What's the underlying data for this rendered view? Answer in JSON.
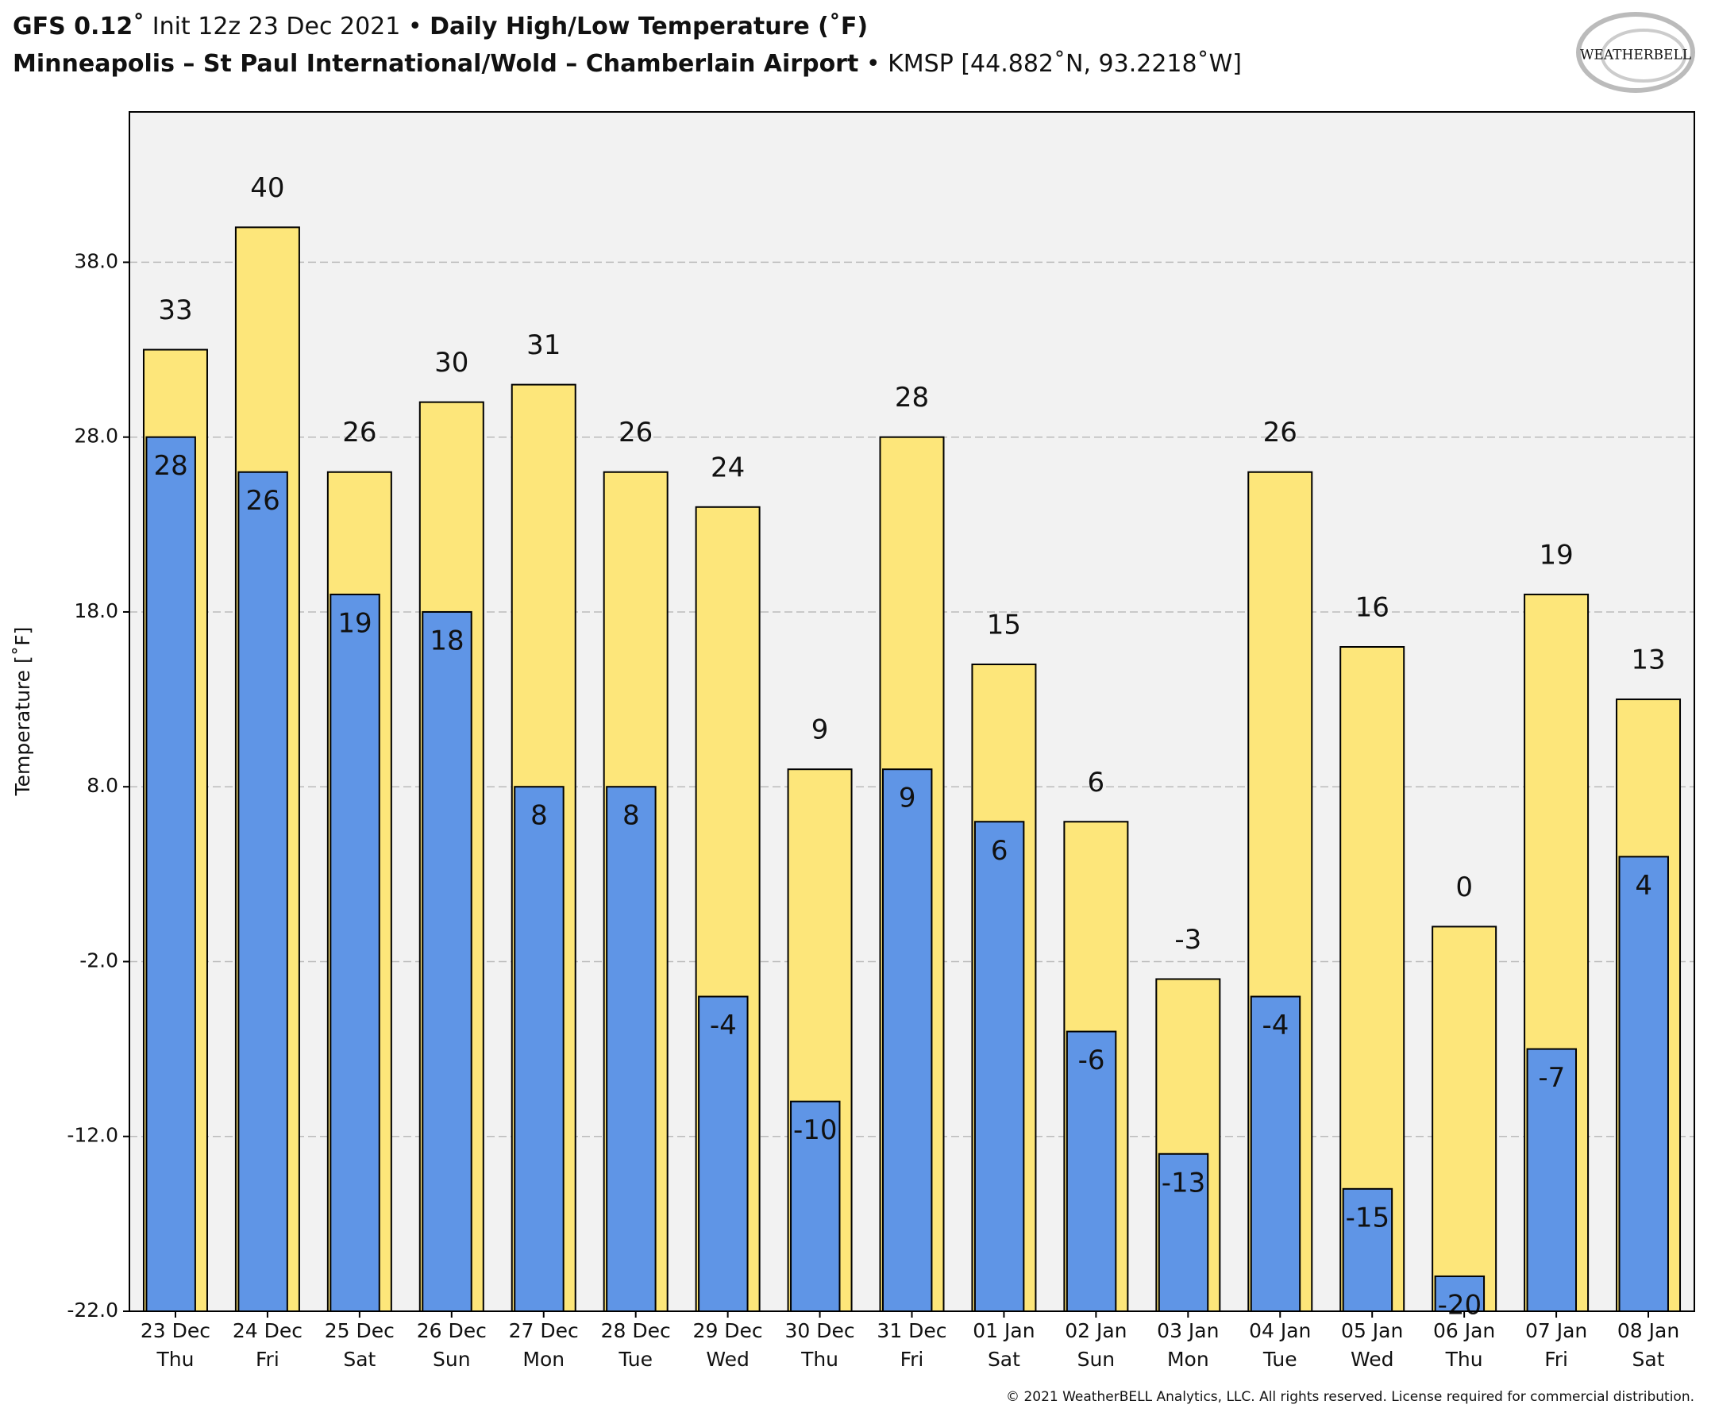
{
  "chart_data": {
    "type": "bar",
    "title_model": "GFS 0.12˚",
    "title_init": "Init 12z 23 Dec 2021 •",
    "title_main": "Daily High/Low Temperature (˚F)",
    "subtitle_station": "Minneapolis – St Paul International/Wold – Chamberlain Airport",
    "subtitle_code": "• KMSP [44.882˚N, 93.2218˚W]",
    "logo": "WEATHERBELL",
    "footer": "© 2021 WeatherBELL Analytics, LLC. All rights reserved. License required for commercial distribution.",
    "y_label": "Temperature [˚F]",
    "categories": [
      "23 Dec",
      "24 Dec",
      "25 Dec",
      "26 Dec",
      "27 Dec",
      "28 Dec",
      "29 Dec",
      "30 Dec",
      "31 Dec",
      "01 Jan",
      "02 Jan",
      "03 Jan",
      "04 Jan",
      "05 Jan",
      "06 Jan",
      "07 Jan",
      "08 Jan"
    ],
    "category_sublabels": [
      "Thu",
      "Fri",
      "Sat",
      "Sun",
      "Mon",
      "Tue",
      "Wed",
      "Thu",
      "Fri",
      "Sat",
      "Sun",
      "Mon",
      "Tue",
      "Wed",
      "Thu",
      "Fri",
      "Sat"
    ],
    "series": [
      {
        "color": "#fde67a",
        "values": [
          33,
          40,
          26,
          30,
          31,
          26,
          24,
          9,
          28,
          15,
          6,
          -3,
          26,
          16,
          0,
          19,
          13
        ]
      },
      {
        "color": "#5f95e6",
        "values": [
          28,
          26,
          19,
          18,
          8,
          8,
          -4,
          -10,
          9,
          6,
          -6,
          -13,
          -4,
          -15,
          -20,
          -7,
          4
        ]
      }
    ],
    "ylim": [
      -22,
      46.6
    ],
    "yticks": [
      {
        "value": -22,
        "label": "-22.0"
      },
      {
        "value": -12,
        "label": "-12.0"
      },
      {
        "value": -2,
        "label": "-2.0"
      },
      {
        "value": 8,
        "label": "8.0"
      },
      {
        "value": 18,
        "label": "18.0"
      },
      {
        "value": 28,
        "label": "28.0"
      },
      {
        "value": 38,
        "label": "38.0"
      }
    ],
    "grid": true
  }
}
